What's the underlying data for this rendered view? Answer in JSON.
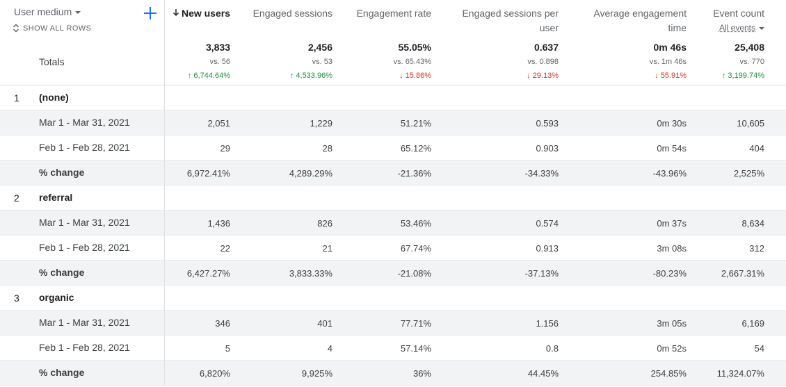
{
  "dimension": {
    "label": "User medium",
    "show_all": "SHOW ALL ROWS",
    "totals_label": "Totals"
  },
  "colors": {
    "up": "#1e8e3e",
    "down": "#d93025",
    "accent": "#1a73e8"
  },
  "columns": [
    {
      "title_lines": [
        "New users"
      ],
      "sorted": true,
      "total": "3,833",
      "vs": "vs. 56",
      "change": "6,744.64%",
      "dir": "up"
    },
    {
      "title_lines": [
        "Engaged sessions"
      ],
      "total": "2,456",
      "vs": "vs. 53",
      "change": "4,533.96%",
      "dir": "up"
    },
    {
      "title_lines": [
        "Engagement rate"
      ],
      "total": "55.05%",
      "vs": "vs. 65.43%",
      "change": "15.86%",
      "dir": "down"
    },
    {
      "title_lines": [
        "Engaged sessions per",
        "user"
      ],
      "total": "0.637",
      "vs": "vs. 0.898",
      "change": "29.13%",
      "dir": "down"
    },
    {
      "title_lines": [
        "Average engagement",
        "time"
      ],
      "total": "0m 46s",
      "vs": "vs. 1m 46s",
      "change": "55.91%",
      "dir": "down"
    },
    {
      "title_lines": [
        "Event count"
      ],
      "sub_select": "All events",
      "total": "25,408",
      "vs": "vs. 770",
      "change": "3,199.74%",
      "dir": "up"
    }
  ],
  "groups": [
    {
      "index": "1",
      "name": "(none)",
      "rows": [
        {
          "label": "Mar 1 - Mar 31, 2021",
          "values": [
            "2,051",
            "1,229",
            "51.21%",
            "0.593",
            "0m 30s",
            "10,605"
          ]
        },
        {
          "label": "Feb 1 - Feb 28, 2021",
          "values": [
            "29",
            "28",
            "65.12%",
            "0.903",
            "0m 54s",
            "404"
          ]
        },
        {
          "label": "% change",
          "values": [
            "6,972.41%",
            "4,289.29%",
            "-21.36%",
            "-34.33%",
            "-43.96%",
            "2,525%"
          ]
        }
      ]
    },
    {
      "index": "2",
      "name": "referral",
      "rows": [
        {
          "label": "Mar 1 - Mar 31, 2021",
          "values": [
            "1,436",
            "826",
            "53.46%",
            "0.574",
            "0m 37s",
            "8,634"
          ]
        },
        {
          "label": "Feb 1 - Feb 28, 2021",
          "values": [
            "22",
            "21",
            "67.74%",
            "0.913",
            "3m 08s",
            "312"
          ]
        },
        {
          "label": "% change",
          "values": [
            "6,427.27%",
            "3,833.33%",
            "-21.08%",
            "-37.13%",
            "-80.23%",
            "2,667.31%"
          ]
        }
      ]
    },
    {
      "index": "3",
      "name": "organic",
      "rows": [
        {
          "label": "Mar 1 - Mar 31, 2021",
          "values": [
            "346",
            "401",
            "77.71%",
            "1.156",
            "3m 05s",
            "6,169"
          ]
        },
        {
          "label": "Feb 1 - Feb 28, 2021",
          "values": [
            "5",
            "4",
            "57.14%",
            "0.8",
            "0m 52s",
            "54"
          ]
        },
        {
          "label": "% change",
          "values": [
            "6,820%",
            "9,925%",
            "36%",
            "44.45%",
            "254.85%",
            "11,324.07%"
          ]
        }
      ]
    }
  ]
}
